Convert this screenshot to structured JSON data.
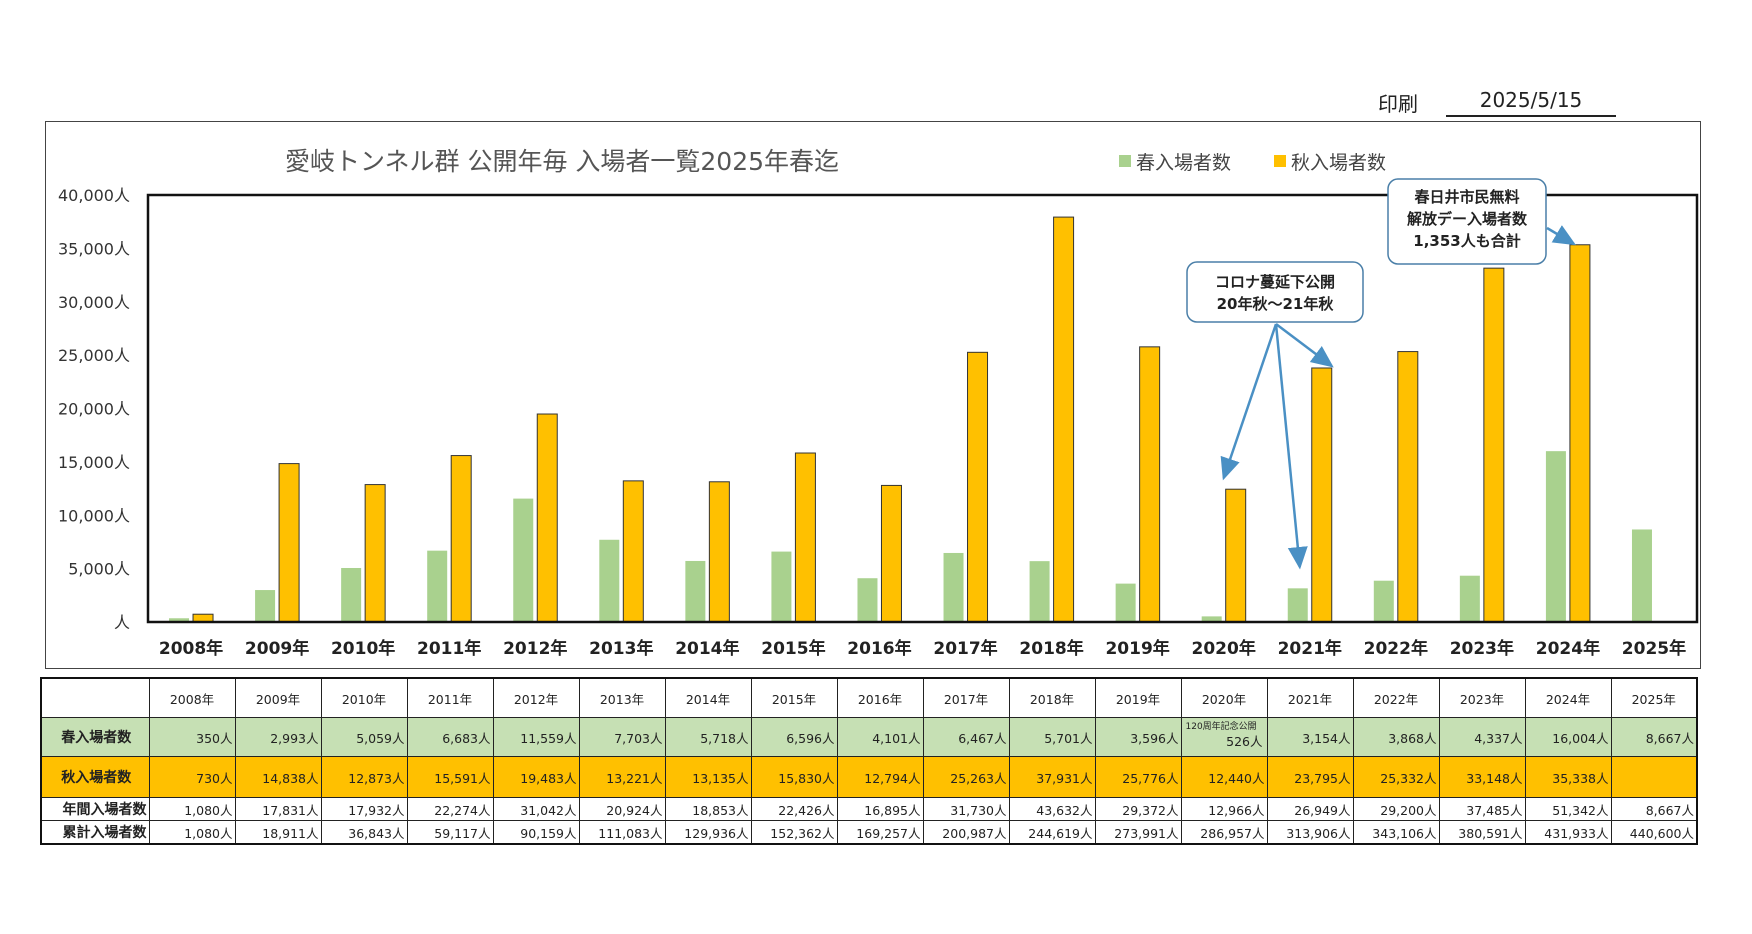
{
  "print": {
    "label": "印刷",
    "date": "2025/5/15"
  },
  "chart_data": {
    "type": "bar",
    "title": "愛岐トンネル群 公開年毎 入場者一覧2025年春迄",
    "categories": [
      "2008年",
      "2009年",
      "2010年",
      "2011年",
      "2012年",
      "2013年",
      "2014年",
      "2015年",
      "2016年",
      "2017年",
      "2018年",
      "2019年",
      "2020年",
      "2021年",
      "2022年",
      "2023年",
      "2024年",
      "2025年"
    ],
    "series": [
      {
        "name": "春入場者数",
        "color": "#a9d18e",
        "values": [
          350,
          2993,
          5059,
          6683,
          11559,
          7703,
          5718,
          6596,
          4101,
          6467,
          5701,
          3596,
          526,
          3154,
          3868,
          4337,
          16004,
          8667
        ]
      },
      {
        "name": "秋入場者数",
        "color": "#ffc000",
        "values": [
          730,
          14838,
          12873,
          15591,
          19483,
          13221,
          13135,
          15830,
          12794,
          25263,
          37931,
          25776,
          12440,
          23795,
          25332,
          33148,
          35338,
          null
        ]
      }
    ],
    "ylim": [
      0,
      40000
    ],
    "yticks": [
      "人",
      "5,000人",
      "10,000人",
      "15,000人",
      "20,000人",
      "25,000人",
      "30,000人",
      "35,000人",
      "40,000人"
    ],
    "legend_position": "top-right",
    "annotations": [
      {
        "text": [
          "コロナ蔓延下公開",
          "20年秋～21年秋"
        ]
      },
      {
        "text": [
          "春日井市民無料",
          "解放デー入場者数",
          "1,353人も合計"
        ]
      }
    ]
  },
  "table": {
    "years": [
      "2008年",
      "2009年",
      "2010年",
      "2011年",
      "2012年",
      "2013年",
      "2014年",
      "2015年",
      "2016年",
      "2017年",
      "2018年",
      "2019年",
      "2020年",
      "2021年",
      "2022年",
      "2023年",
      "2024年",
      "2025年"
    ],
    "rows": [
      {
        "label": "春入場者数",
        "cls": "spring",
        "cells": [
          "350人",
          "2,993人",
          "5,059人",
          "6,683人",
          "11,559人",
          "7,703人",
          "5,718人",
          "6,596人",
          "4,101人",
          "6,467人",
          "5,701人",
          "3,596人",
          "526人",
          "3,154人",
          "3,868人",
          "4,337人",
          "16,004人",
          "8,667人"
        ]
      },
      {
        "label": "秋入場者数",
        "cls": "autumn",
        "cells": [
          "730人",
          "14,838人",
          "12,873人",
          "15,591人",
          "19,483人",
          "13,221人",
          "13,135人",
          "15,830人",
          "12,794人",
          "25,263人",
          "37,931人",
          "25,776人",
          "12,440人",
          "23,795人",
          "25,332人",
          "33,148人",
          "35,338人",
          ""
        ]
      },
      {
        "label": "年間入場者数",
        "cls": "annual",
        "cells": [
          "1,080人",
          "17,831人",
          "17,932人",
          "22,274人",
          "31,042人",
          "20,924人",
          "18,853人",
          "22,426人",
          "16,895人",
          "31,730人",
          "43,632人",
          "29,372人",
          "12,966人",
          "26,949人",
          "29,200人",
          "37,485人",
          "51,342人",
          "8,667人"
        ]
      },
      {
        "label": "累計入場者数",
        "cls": "cumul",
        "cells": [
          "1,080人",
          "18,911人",
          "36,843人",
          "59,117人",
          "90,159人",
          "111,083人",
          "129,936人",
          "152,362人",
          "169,257人",
          "200,987人",
          "244,619人",
          "273,991人",
          "286,957人",
          "313,906人",
          "343,106人",
          "380,591人",
          "431,933人",
          "440,600人"
        ]
      }
    ],
    "note_2020_spring": "120周年記念公開"
  }
}
